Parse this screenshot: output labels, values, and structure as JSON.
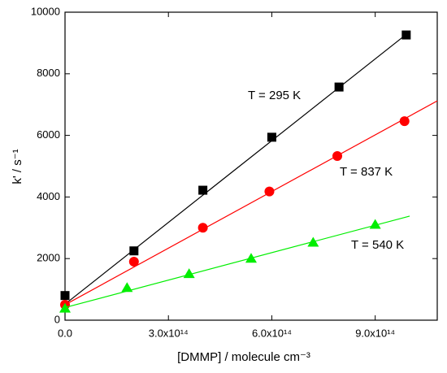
{
  "chart_data": {
    "type": "scatter",
    "xlabel": "[DMMP]  /  molecule cm⁻³",
    "ylabel": "k' / s⁻¹",
    "xlim": [
      0,
      1080000000000000.0
    ],
    "ylim": [
      0,
      10000
    ],
    "xticks": [
      {
        "value": 0,
        "label": "0.0"
      },
      {
        "value": 300000000000000.0,
        "label": "3.0x10¹⁴"
      },
      {
        "value": 600000000000000.0,
        "label": "6.0x10¹⁴"
      },
      {
        "value": 900000000000000.0,
        "label": "9.0x10¹⁴"
      }
    ],
    "yticks": [
      0,
      2000,
      4000,
      6000,
      8000,
      10000
    ],
    "series": [
      {
        "name": "T = 295 K",
        "color": "#000000",
        "marker": "square",
        "x": [
          0,
          200000000000000.0,
          400000000000000.0,
          600000000000000.0,
          795000000000000.0,
          990000000000000.0
        ],
        "values": [
          800,
          2250,
          4220,
          5940,
          7570,
          9260
        ],
        "fit_x": [
          0,
          990000000000000.0
        ],
        "fit_values": [
          520,
          9280
        ]
      },
      {
        "name": "T = 837 K",
        "color": "#ff0000",
        "marker": "circle",
        "x": [
          0,
          200000000000000.0,
          400000000000000.0,
          593000000000000.0,
          790000000000000.0,
          985000000000000.0
        ],
        "values": [
          500,
          1900,
          3000,
          4180,
          5330,
          6460
        ],
        "fit_x": [
          0,
          1080000000000000.0
        ],
        "fit_values": [
          500,
          7120
        ]
      },
      {
        "name": "T = 540 K",
        "color": "#00ee00",
        "marker": "triangle",
        "x": [
          0,
          180000000000000.0,
          360000000000000.0,
          540000000000000.0,
          720000000000000.0,
          900000000000000.0
        ],
        "values": [
          380,
          1050,
          1500,
          2000,
          2520,
          3100
        ],
        "fit_x": [
          0,
          1000000000000000.0
        ],
        "fit_values": [
          410,
          3380
        ]
      }
    ]
  }
}
